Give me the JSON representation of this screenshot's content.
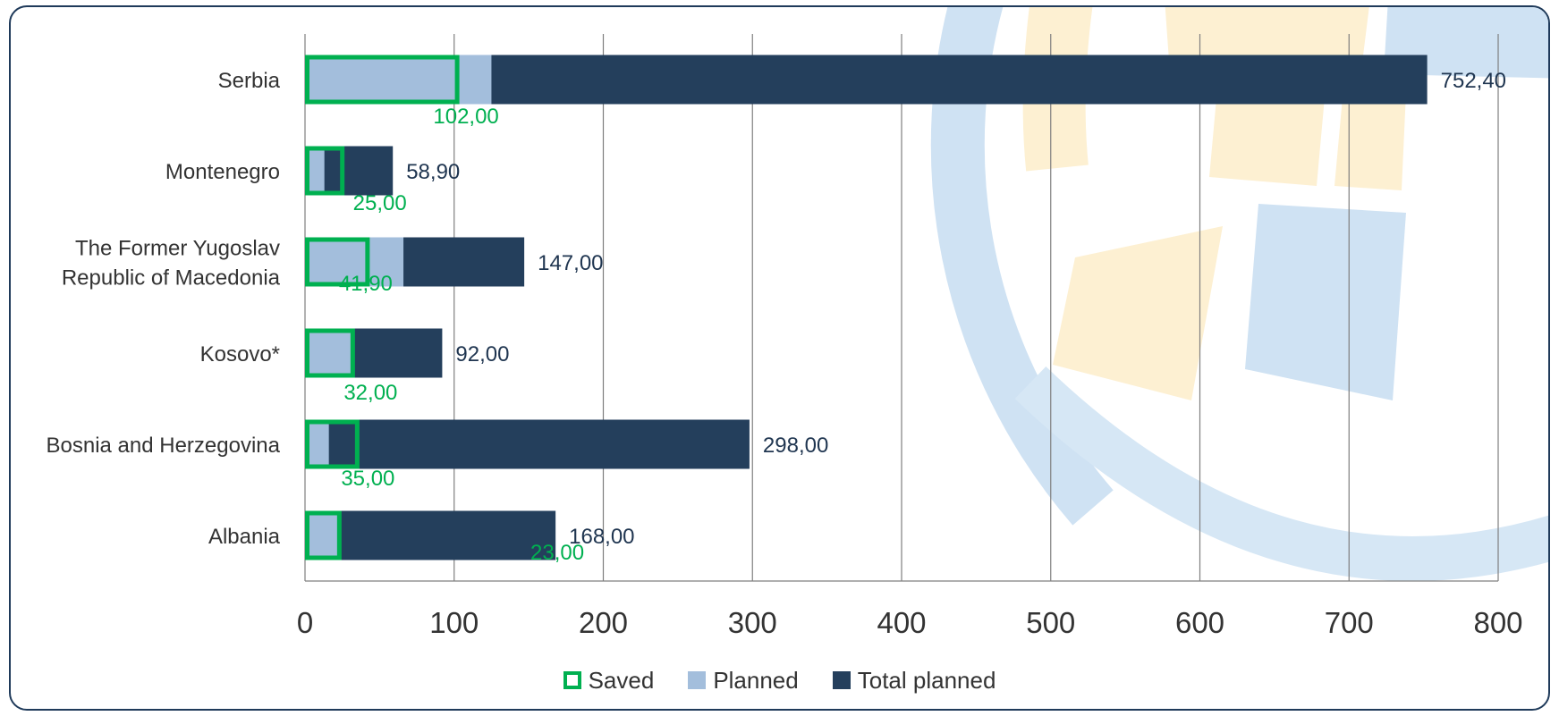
{
  "chart_data": {
    "type": "bar",
    "orientation": "horizontal",
    "categories": [
      "Serbia",
      "Montenegro",
      "The Former Yugoslav Republic of Macedonia",
      "Kosovo*",
      "Bosnia and Herzegovina",
      "Albania"
    ],
    "category_lines": [
      [
        "Serbia"
      ],
      [
        "Montenegro"
      ],
      [
        "The Former Yugoslav ",
        "Republic of Macedonia"
      ],
      [
        "Kosovo*"
      ],
      [
        "Bosnia and Herzegovina"
      ],
      [
        "Albania"
      ]
    ],
    "series": [
      {
        "name": "Total planned",
        "values": [
          752.4,
          58.9,
          147.0,
          92.0,
          298.0,
          168.0
        ],
        "labels": [
          "752,40",
          "58,90",
          "147,00",
          "92,00",
          "298,00",
          "168,00"
        ],
        "color": "#243f5c"
      },
      {
        "name": "Planned",
        "values": [
          125,
          13,
          66,
          32,
          16,
          24
        ],
        "color": "#a3bedc"
      },
      {
        "name": "Saved",
        "values": [
          102.0,
          25.0,
          41.9,
          32.0,
          35.0,
          23.0
        ],
        "labels": [
          "102,00",
          "25,00",
          "41,90",
          "32,00",
          "35,00",
          "23,00"
        ],
        "color": "#00b050",
        "style": "outline"
      }
    ],
    "xlim": [
      0,
      800
    ],
    "xticks": [
      0,
      100,
      200,
      300,
      400,
      500,
      600,
      700,
      800
    ],
    "grid": true,
    "legend_position": "bottom",
    "xlabel": "",
    "ylabel": "",
    "title": ""
  },
  "legend": {
    "items": [
      {
        "key": "saved",
        "label": "Saved"
      },
      {
        "key": "planned",
        "label": "Planned"
      },
      {
        "key": "total",
        "label": "Total planned"
      }
    ]
  },
  "colors": {
    "frame_border": "#1f3a5a",
    "grid": "#7f7f7f",
    "label_text": "#333333",
    "total_label_text": "#1f3550",
    "saved_label_text": "#00b050",
    "watermark_blue": "#cfe2f3",
    "watermark_yellow": "#fdf0d2"
  }
}
